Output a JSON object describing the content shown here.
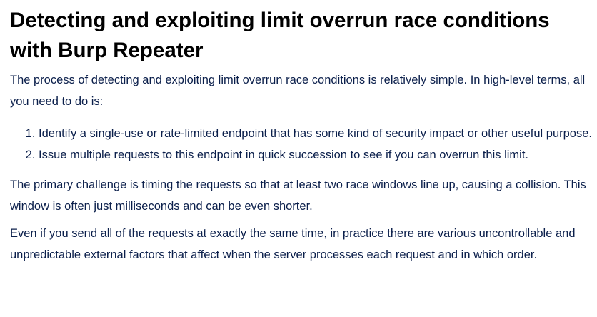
{
  "article": {
    "heading": "Detecting and exploiting limit overrun race conditions with Burp Repeater",
    "intro": "The process of detecting and exploiting limit overrun race conditions is relatively simple. In high-level terms, all you need to do is:",
    "steps": [
      "Identify a single-use or rate-limited endpoint that has some kind of security impact or other useful purpose.",
      "Issue multiple requests to this endpoint in quick succession to see if you can overrun this limit."
    ],
    "challenge": "The primary challenge is timing the requests so that at least two race windows line up, causing a collision. This window is often just milliseconds and can be even shorter.",
    "even_if": "Even if you send all of the requests at exactly the same time, in practice there are various uncontrollable and unpredictable external factors that affect when the server processes each request and in which order."
  },
  "colors": {
    "heading": "#000000",
    "body_text": "#0b1f4b",
    "background": "#ffffff"
  }
}
